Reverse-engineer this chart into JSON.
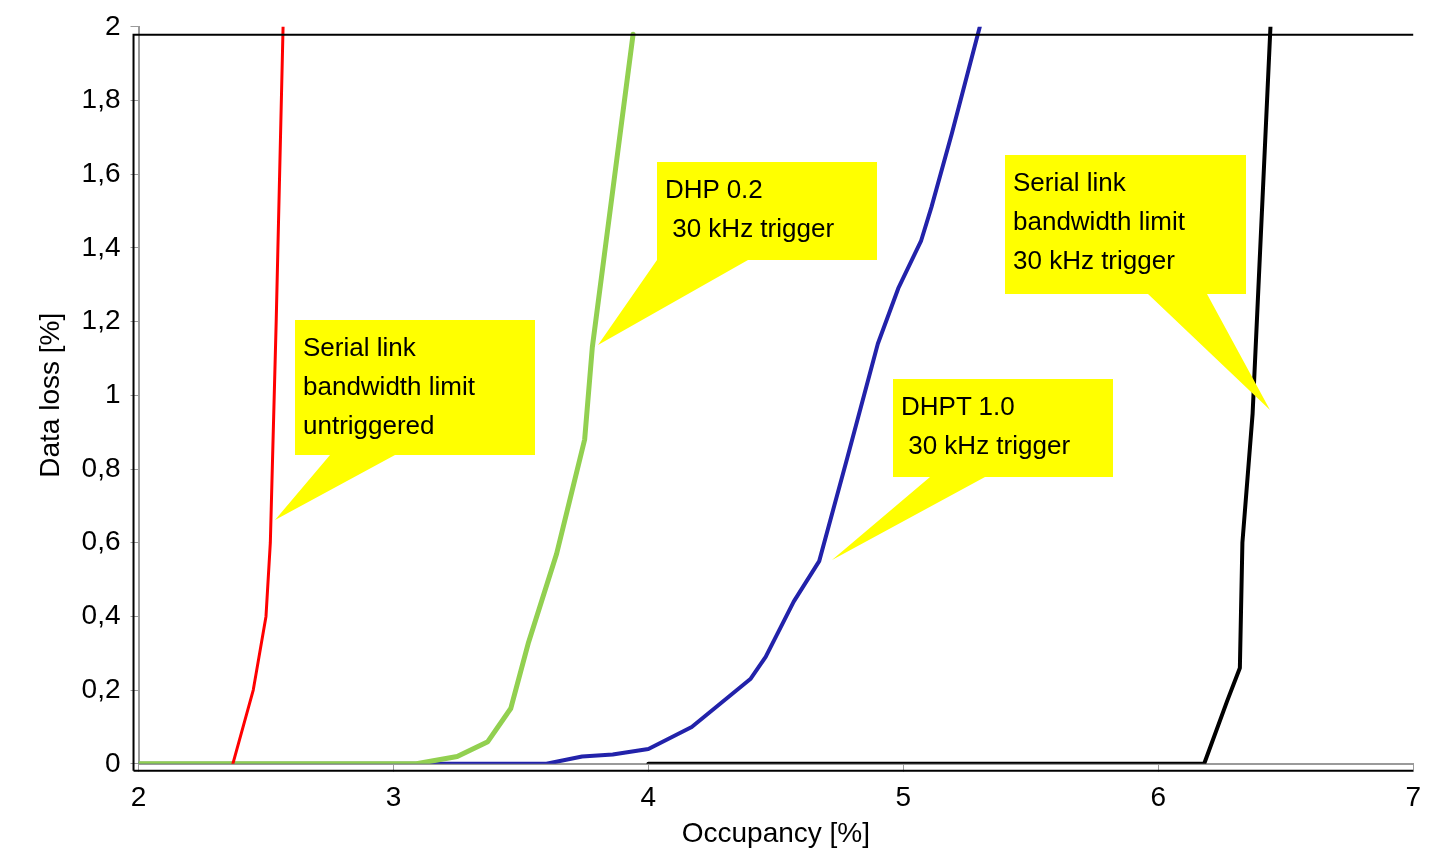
{
  "chart_data": {
    "type": "line",
    "xlabel": "Occupancy [%]",
    "ylabel": "Data loss [%]",
    "xlim": [
      2,
      7
    ],
    "xticks": [
      2,
      3,
      4,
      5,
      6,
      7
    ],
    "ylim": [
      0,
      2
    ],
    "yticks": [
      {
        "value": 0,
        "label": "0"
      },
      {
        "value": 0.2,
        "label": "0,2"
      },
      {
        "value": 0.4,
        "label": "0,4"
      },
      {
        "value": 0.6,
        "label": "0,6"
      },
      {
        "value": 0.8,
        "label": "0,8"
      },
      {
        "value": 1,
        "label": "1"
      },
      {
        "value": 1.2,
        "label": "1,2"
      },
      {
        "value": 1.4,
        "label": "1,4"
      },
      {
        "value": 1.6,
        "label": "1,6"
      },
      {
        "value": 1.8,
        "label": "1,8"
      },
      {
        "value": 2,
        "label": "2"
      }
    ],
    "grid": false,
    "legend": false,
    "marker": "none",
    "line_style": "solid",
    "series": [
      {
        "color": "#ff0000",
        "x": [
          2.37,
          2.45,
          2.5,
          2.517,
          2.54,
          2.567
        ],
        "values": [
          0,
          0.2,
          0.4,
          0.6,
          1.2,
          2
        ]
      },
      {
        "color": "#92d050",
        "x": [
          2,
          3.09,
          3.25,
          3.37,
          3.46,
          3.53,
          3.64,
          3.75,
          3.78,
          3.94
        ],
        "values": [
          0,
          0,
          0.02,
          0.06,
          0.15,
          0.33,
          0.57,
          0.88,
          1.13,
          1.98
        ]
      },
      {
        "color": "#2222aa",
        "x": [
          2,
          3.6,
          3.74,
          3.86,
          4.0,
          4.17,
          4.4,
          4.46,
          4.57,
          4.67,
          4.78,
          4.9,
          4.98,
          5.07,
          5.11,
          5.19,
          5.3
        ],
        "values": [
          0,
          0,
          0.02,
          0.025,
          0.04,
          0.1,
          0.23,
          0.29,
          0.44,
          0.55,
          0.83,
          1.14,
          1.29,
          1.42,
          1.51,
          1.71,
          2
        ]
      },
      {
        "color": "#000000",
        "x": [
          4,
          6.1,
          6.18,
          6.27,
          6.32,
          6.33,
          6.37,
          6.44
        ],
        "values": [
          0,
          0,
          0,
          0.17,
          0.26,
          0.6,
          0.95,
          2
        ]
      }
    ],
    "annotations": [
      "Serial link\nbandwidth limit\nuntriggered",
      "DHP 0.2\n 30 kHz trigger",
      "DHPT 1.0\n 30 kHz trigger",
      "Serial link\nbandwidth limit\n30 kHz trigger"
    ]
  }
}
